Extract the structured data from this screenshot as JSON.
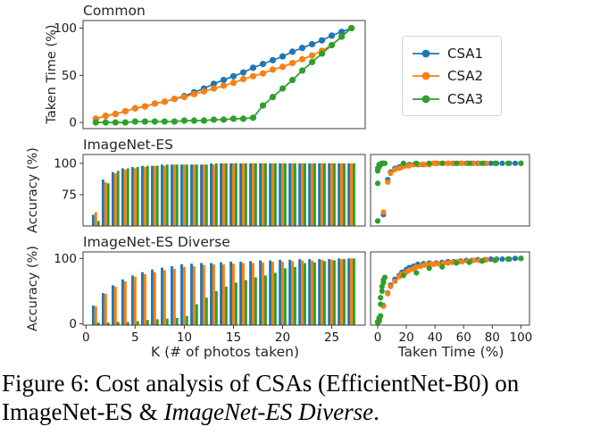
{
  "caption": {
    "line1": "Figure 6: Cost analysis of CSAs (EfficientNet-B0) on",
    "line2_roman": "ImageNet-ES & ",
    "line2_italic": "ImageNet-ES Diverse",
    "line2_end": "."
  },
  "legend": {
    "items": [
      {
        "label": "CSA1",
        "color": "#1f77b4"
      },
      {
        "label": "CSA2",
        "color": "#ff7f0e"
      },
      {
        "label": "CSA3",
        "color": "#2ca02c"
      }
    ],
    "position": "upper-right-outside"
  },
  "colors": {
    "csa1": "#1f77b4",
    "csa2": "#ff7f0e",
    "csa3": "#2ca02c",
    "axis": "#3c3c3c",
    "tick_text": "#1a1a1a"
  },
  "chart_data": [
    {
      "id": "common",
      "type": "line",
      "title": "Common",
      "ylabel": "Taken Time (%)",
      "x": [
        1,
        2,
        3,
        4,
        5,
        6,
        7,
        8,
        9,
        10,
        11,
        12,
        13,
        14,
        15,
        16,
        17,
        18,
        19,
        20,
        21,
        22,
        23,
        24,
        25,
        26,
        27
      ],
      "xlim": [
        -0.3,
        28.4
      ],
      "ylim": [
        -6.5,
        108
      ],
      "yticks": [
        0,
        50,
        100
      ],
      "grid": false,
      "series": [
        {
          "name": "CSA1",
          "color": "#1f77b4",
          "values": [
            4,
            7,
            9,
            12,
            15,
            17,
            20,
            22,
            25,
            28,
            32,
            36,
            41,
            45,
            49,
            53,
            58,
            62,
            66,
            70,
            75,
            79,
            83,
            87,
            92,
            96,
            100
          ]
        },
        {
          "name": "CSA2",
          "color": "#ff7f0e",
          "values": [
            4,
            7,
            9,
            12,
            15,
            17,
            20,
            22,
            25,
            27,
            30,
            33,
            36,
            39,
            42,
            46,
            49,
            52,
            56,
            59,
            63,
            67,
            71,
            76,
            82,
            91,
            100
          ]
        },
        {
          "name": "CSA3",
          "color": "#2ca02c",
          "values": [
            0,
            0,
            0,
            0,
            1,
            1,
            1,
            1,
            1,
            2,
            2,
            2,
            3,
            3,
            4,
            4,
            5,
            18,
            27,
            36,
            45,
            55,
            64,
            73,
            82,
            91,
            100
          ]
        }
      ]
    },
    {
      "id": "imagenet-es",
      "type": "bar",
      "title": "ImageNet-ES",
      "ylabel": "Accuracy (%)",
      "categories": [
        1,
        2,
        3,
        4,
        5,
        6,
        7,
        8,
        9,
        10,
        11,
        12,
        13,
        14,
        15,
        16,
        17,
        18,
        19,
        20,
        21,
        22,
        23,
        24,
        25,
        26,
        27
      ],
      "xlim": [
        -0.3,
        28.4
      ],
      "ylim": [
        50,
        107
      ],
      "yticks": [
        75,
        100
      ],
      "grid": false,
      "series": [
        {
          "name": "CSA1",
          "color": "#1f77b4",
          "values": [
            59,
            87,
            93,
            96,
            97,
            98,
            98,
            99,
            99,
            99,
            99,
            99,
            100,
            100,
            100,
            100,
            100,
            100,
            100,
            100,
            100,
            100,
            100,
            100,
            100,
            100,
            100
          ]
        },
        {
          "name": "CSA2",
          "color": "#ff7f0e",
          "values": [
            61,
            85,
            92,
            95,
            96,
            97,
            98,
            98,
            99,
            99,
            99,
            99,
            99,
            100,
            100,
            100,
            100,
            100,
            100,
            100,
            100,
            100,
            100,
            100,
            100,
            100,
            100
          ]
        },
        {
          "name": "CSA3",
          "color": "#2ca02c",
          "values": [
            54,
            84,
            94,
            96,
            97,
            98,
            98,
            99,
            99,
            99,
            99,
            99,
            100,
            100,
            100,
            100,
            100,
            100,
            100,
            100,
            100,
            100,
            100,
            100,
            100,
            100,
            100
          ]
        }
      ]
    },
    {
      "id": "imagenet-es-scatter",
      "type": "scatter",
      "title": "",
      "note": "Accuracy on ImageNet-ES vs Taken Time, one point per K",
      "xlim": [
        -5,
        106
      ],
      "ylim": [
        50,
        107
      ],
      "grid": false,
      "series": [
        {
          "name": "CSA1",
          "color": "#1f77b4",
          "x": [
            4,
            7,
            9,
            12,
            15,
            17,
            20,
            22,
            25,
            28,
            32,
            36,
            41,
            45,
            49,
            53,
            58,
            62,
            66,
            70,
            75,
            79,
            83,
            87,
            92,
            96,
            100
          ],
          "y": [
            59,
            87,
            93,
            96,
            97,
            98,
            98,
            99,
            99,
            99,
            99,
            99,
            100,
            100,
            100,
            100,
            100,
            100,
            100,
            100,
            100,
            100,
            100,
            100,
            100,
            100,
            100
          ]
        },
        {
          "name": "CSA2",
          "color": "#ff7f0e",
          "x": [
            4,
            7,
            9,
            12,
            15,
            17,
            20,
            22,
            25,
            27,
            30,
            33,
            36,
            39,
            42,
            46,
            49,
            52,
            56,
            59,
            63,
            67,
            71,
            76,
            82,
            91,
            100
          ],
          "y": [
            61,
            85,
            92,
            95,
            96,
            97,
            98,
            98,
            99,
            99,
            99,
            99,
            99,
            100,
            100,
            100,
            100,
            100,
            100,
            100,
            100,
            100,
            100,
            100,
            100,
            100,
            100
          ]
        },
        {
          "name": "CSA3",
          "color": "#2ca02c",
          "x": [
            0,
            0,
            0,
            0,
            1,
            1,
            1,
            1,
            1,
            2,
            2,
            2,
            3,
            3,
            4,
            4,
            5,
            18,
            27,
            36,
            45,
            55,
            64,
            73,
            82,
            91,
            100
          ],
          "y": [
            54,
            84,
            94,
            96,
            97,
            98,
            98,
            99,
            99,
            99,
            99,
            99,
            100,
            100,
            100,
            100,
            100,
            100,
            100,
            100,
            100,
            100,
            100,
            100,
            100,
            100,
            100
          ]
        }
      ]
    },
    {
      "id": "imagenet-es-diverse",
      "type": "bar",
      "title": "ImageNet-ES Diverse",
      "ylabel": "Accuracy (%)",
      "xlabel": "K (# of photos taken)",
      "categories": [
        1,
        2,
        3,
        4,
        5,
        6,
        7,
        8,
        9,
        10,
        11,
        12,
        13,
        14,
        15,
        16,
        17,
        18,
        19,
        20,
        21,
        22,
        23,
        24,
        25,
        26,
        27
      ],
      "xlim": [
        -0.3,
        28.4
      ],
      "ylim": [
        -2,
        110
      ],
      "yticks": [
        0,
        100
      ],
      "xticks": [
        0,
        5,
        10,
        15,
        20,
        25
      ],
      "grid": false,
      "series": [
        {
          "name": "CSA1",
          "color": "#1f77b4",
          "values": [
            28,
            47,
            59,
            68,
            74,
            79,
            83,
            86,
            88,
            91,
            92,
            93,
            93,
            94,
            95,
            95,
            96,
            97,
            97,
            98,
            98,
            99,
            99,
            99,
            99,
            100,
            100
          ]
        },
        {
          "name": "CSA2",
          "color": "#ff7f0e",
          "values": [
            27,
            46,
            57,
            65,
            72,
            76,
            79,
            82,
            84,
            87,
            88,
            90,
            91,
            91,
            92,
            93,
            93,
            94,
            95,
            95,
            96,
            97,
            97,
            98,
            98,
            99,
            100
          ]
        },
        {
          "name": "CSA3",
          "color": "#2ca02c",
          "values": [
            2,
            2,
            3,
            3,
            4,
            6,
            7,
            8,
            9,
            12,
            30,
            40,
            50,
            57,
            63,
            67,
            71,
            74,
            78,
            85,
            87,
            93,
            94,
            96,
            97,
            99,
            100
          ]
        }
      ]
    },
    {
      "id": "imagenet-es-diverse-scatter",
      "type": "scatter",
      "title": "",
      "xlabel": "Taken Time (%)",
      "note": "Accuracy on ImageNet-ES Diverse vs Taken Time, one point per K",
      "xlim": [
        -5,
        106
      ],
      "ylim": [
        -2,
        110
      ],
      "xticks": [
        0,
        20,
        40,
        60,
        80,
        100
      ],
      "grid": false,
      "series": [
        {
          "name": "CSA1",
          "color": "#1f77b4",
          "x": [
            4,
            7,
            9,
            12,
            15,
            17,
            20,
            22,
            25,
            28,
            32,
            36,
            41,
            45,
            49,
            53,
            58,
            62,
            66,
            70,
            75,
            79,
            83,
            87,
            92,
            96,
            100
          ],
          "y": [
            28,
            47,
            59,
            68,
            74,
            79,
            83,
            86,
            88,
            91,
            92,
            93,
            93,
            94,
            95,
            95,
            96,
            97,
            97,
            98,
            98,
            99,
            99,
            99,
            99,
            100,
            100
          ]
        },
        {
          "name": "CSA2",
          "color": "#ff7f0e",
          "x": [
            4,
            7,
            9,
            12,
            15,
            17,
            20,
            22,
            25,
            27,
            30,
            33,
            36,
            39,
            42,
            46,
            49,
            52,
            56,
            59,
            63,
            67,
            71,
            76,
            82,
            91,
            100
          ],
          "y": [
            27,
            46,
            57,
            65,
            72,
            76,
            79,
            82,
            84,
            87,
            88,
            90,
            91,
            91,
            92,
            93,
            93,
            94,
            95,
            95,
            96,
            97,
            97,
            98,
            98,
            99,
            100
          ]
        },
        {
          "name": "CSA3",
          "color": "#2ca02c",
          "x": [
            0,
            0,
            0,
            0,
            1,
            1,
            1,
            1,
            1,
            2,
            2,
            2,
            3,
            3,
            4,
            4,
            5,
            18,
            27,
            36,
            45,
            55,
            64,
            73,
            82,
            91,
            100
          ],
          "y": [
            2,
            2,
            3,
            3,
            4,
            6,
            7,
            8,
            9,
            12,
            30,
            40,
            50,
            57,
            63,
            67,
            71,
            74,
            78,
            85,
            87,
            93,
            94,
            96,
            97,
            99,
            100
          ]
        }
      ]
    }
  ]
}
